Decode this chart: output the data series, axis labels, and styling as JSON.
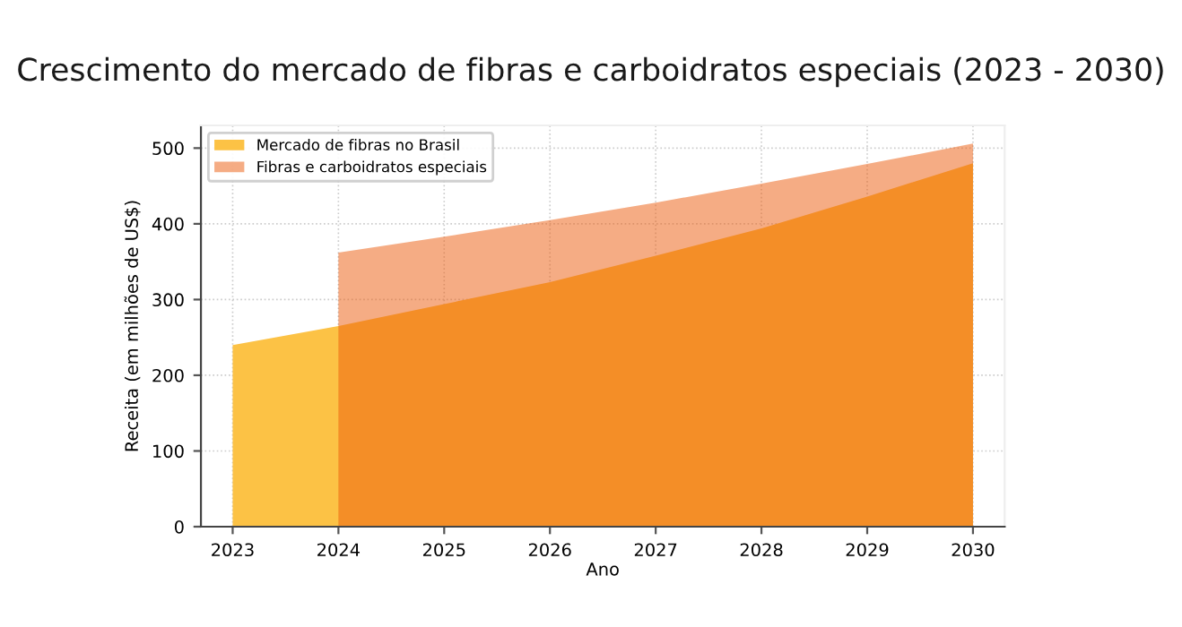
{
  "chart_data": {
    "type": "area",
    "title": "Crescimento do mercado de fibras e carboidratos especiais (2023 - 2030)",
    "xlabel": "Ano",
    "ylabel": "Receita (em milhões de US$)",
    "x": [
      2023,
      2024,
      2025,
      2026,
      2027,
      2028,
      2029,
      2030
    ],
    "series": [
      {
        "name": "Mercado de fibras no Brasil",
        "color": "#fcc245",
        "values": [
          240,
          265,
          294,
          323,
          358,
          394,
          436,
          480
        ]
      },
      {
        "name": "Fibras e carboidratos especiais",
        "color": "#eb5a0a",
        "values": [
          null,
          362,
          383,
          405,
          428,
          453,
          479,
          506
        ]
      }
    ],
    "xlim": [
      2022.7,
      2030.3
    ],
    "xticks": [
      2023,
      2024,
      2025,
      2026,
      2027,
      2028,
      2029,
      2030
    ],
    "ylim": [
      0,
      530
    ],
    "yticks": [
      0,
      100,
      200,
      300,
      400,
      500
    ],
    "grid": true,
    "legend": "top left"
  }
}
